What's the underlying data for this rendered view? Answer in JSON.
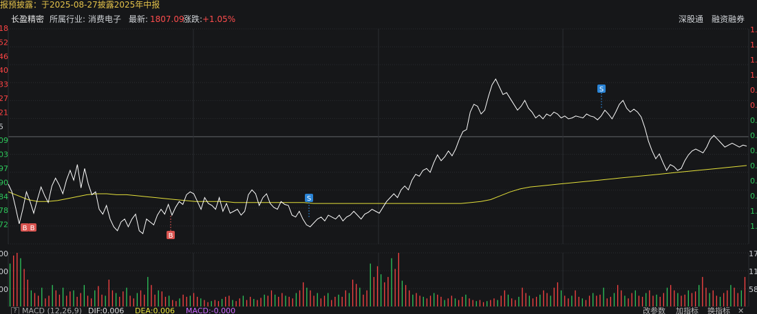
{
  "notice": "报预披露：于2025-08-27披露2025年中报",
  "stock": {
    "name": "长盈精密",
    "industry_label": "所属行业:",
    "industry": "消费电子",
    "latest_label": "最新:",
    "latest": "1807.09",
    "change_label": "涨跌:",
    "change": "+1.05%"
  },
  "toolbar": {
    "shenzhen_connect": "深股通",
    "margin_trading": "融资融券"
  },
  "price_axis": {
    "left_labels": [
      "18",
      "52",
      "46",
      "40",
      "33",
      "27",
      "21",
      "5",
      "09",
      "03",
      "97",
      "90",
      "84",
      "78",
      "72"
    ],
    "right_labels": [
      "1.",
      "1.",
      "1.",
      "1.",
      "0.",
      "0.",
      "0.",
      "0.",
      "0.",
      "0.",
      "0.",
      "0.",
      "1.",
      "1."
    ]
  },
  "volume_axis": {
    "left_labels": [
      "00",
      "00",
      "00"
    ],
    "right_labels": [
      "17",
      "11",
      "58"
    ]
  },
  "signals": {
    "buy": "B",
    "sell": "S"
  },
  "indicator_bar": {
    "help": "?",
    "macd_title": "MACD (12,26,9)",
    "dif": "DIF:0.006",
    "dea": "DEA:0.006",
    "macd": "MACD:-0.000",
    "change_param": "改参数",
    "add_indicator": "加指标",
    "switch_indicator": "换指标"
  },
  "colors": {
    "price_line": "#ffffff",
    "avg_line": "#e6e23a",
    "up": "#ff4444",
    "down": "#2ec95c",
    "grid": "#2b2d31",
    "buy_badge": "#d9534f",
    "sell_badge": "#2a84d6"
  },
  "chart_data": {
    "type": "line",
    "price_series": [
      0.66,
      0.58,
      0.42,
      0.25,
      0.4,
      0.58,
      0.48,
      0.36,
      0.5,
      0.63,
      0.54,
      0.47,
      0.64,
      0.72,
      0.65,
      0.56,
      0.7,
      0.8,
      0.7,
      0.86,
      0.62,
      0.82,
      0.66,
      0.55,
      0.58,
      0.4,
      0.35,
      0.44,
      0.3,
      0.22,
      0.18,
      0.27,
      0.3,
      0.22,
      0.3,
      0.35,
      0.18,
      0.15,
      0.3,
      0.27,
      0.24,
      0.34,
      0.4,
      0.35,
      0.45,
      0.34,
      0.42,
      0.48,
      0.45,
      0.55,
      0.58,
      0.56,
      0.48,
      0.4,
      0.52,
      0.46,
      0.44,
      0.4,
      0.52,
      0.38,
      0.46,
      0.36,
      0.38,
      0.4,
      0.34,
      0.38,
      0.55,
      0.6,
      0.56,
      0.44,
      0.52,
      0.56,
      0.46,
      0.42,
      0.4,
      0.48,
      0.45,
      0.44,
      0.34,
      0.32,
      0.38,
      0.3,
      0.24,
      0.22,
      0.26,
      0.3,
      0.32,
      0.28,
      0.34,
      0.32,
      0.3,
      0.34,
      0.28,
      0.32,
      0.34,
      0.38,
      0.34,
      0.3,
      0.35,
      0.37,
      0.4,
      0.38,
      0.36,
      0.42,
      0.48,
      0.52,
      0.56,
      0.52,
      0.6,
      0.64,
      0.6,
      0.7,
      0.76,
      0.74,
      0.8,
      0.82,
      0.78,
      0.88,
      0.96,
      0.9,
      0.94,
      1.0,
      0.95,
      1.02,
      1.12,
      1.2,
      1.22,
      1.4,
      1.48,
      1.46,
      1.38,
      1.42,
      1.56,
      1.68,
      1.74,
      1.66,
      1.58,
      1.6,
      1.54,
      1.48,
      1.42,
      1.46,
      1.52,
      1.44,
      1.4,
      1.34,
      1.37,
      1.33,
      1.38,
      1.36,
      1.4,
      1.38,
      1.34,
      1.36,
      1.33,
      1.34,
      1.36,
      1.35,
      1.34,
      1.38,
      1.36,
      1.35,
      1.32,
      1.36,
      1.42,
      1.38,
      1.33,
      1.4,
      1.48,
      1.52,
      1.44,
      1.4,
      1.43,
      1.4,
      1.35,
      1.24,
      1.1,
      1.0,
      0.92,
      0.97,
      0.88,
      0.8,
      0.86,
      0.84,
      0.8,
      0.82,
      0.9,
      0.96,
      1.0,
      1.02,
      1.0,
      0.98,
      1.04,
      1.12,
      1.16,
      1.12,
      1.08,
      1.04,
      1.06,
      1.08,
      1.06,
      1.04,
      1.06,
      1.05
    ],
    "avg_series": [
      0.58,
      0.54,
      0.5,
      0.48,
      0.48,
      0.49,
      0.51,
      0.53,
      0.55,
      0.56,
      0.56,
      0.55,
      0.55,
      0.54,
      0.53,
      0.52,
      0.51,
      0.5,
      0.49,
      0.48,
      0.48,
      0.48,
      0.48,
      0.47,
      0.47,
      0.47,
      0.47,
      0.47,
      0.47,
      0.47,
      0.47,
      0.46,
      0.46,
      0.46,
      0.46,
      0.46,
      0.46,
      0.46,
      0.46,
      0.46,
      0.46,
      0.46,
      0.46,
      0.46,
      0.46,
      0.46,
      0.46,
      0.47,
      0.48,
      0.5,
      0.54,
      0.58,
      0.61,
      0.63,
      0.64,
      0.65,
      0.66,
      0.67,
      0.68,
      0.69,
      0.7,
      0.71,
      0.72,
      0.73,
      0.74,
      0.75,
      0.76,
      0.77,
      0.78,
      0.79,
      0.8,
      0.81,
      0.82,
      0.83,
      0.84,
      0.85
    ],
    "volume_series": [
      0.8,
      0.95,
      1.0,
      0.9,
      0.7,
      0.5,
      0.3,
      0.25,
      0.2,
      0.35,
      0.15,
      0.2,
      0.4,
      0.3,
      0.22,
      0.35,
      0.2,
      0.28,
      0.3,
      0.18,
      0.25,
      0.4,
      0.2,
      0.15,
      0.3,
      0.38,
      0.22,
      0.2,
      0.5,
      0.3,
      0.25,
      0.18,
      0.28,
      0.35,
      0.2,
      0.15,
      0.25,
      0.3,
      0.22,
      0.55,
      0.4,
      0.22,
      0.3,
      0.28,
      0.18,
      0.2,
      0.12,
      0.1,
      0.15,
      0.22,
      0.18,
      0.2,
      0.25,
      0.18,
      0.15,
      0.12,
      0.08,
      0.1,
      0.12,
      0.1,
      0.14,
      0.18,
      0.2,
      0.12,
      0.1,
      0.15,
      0.2,
      0.12,
      0.18,
      0.14,
      0.12,
      0.16,
      0.22,
      0.2,
      0.3,
      0.22,
      0.18,
      0.25,
      0.2,
      0.18,
      0.15,
      0.25,
      0.3,
      0.45,
      0.35,
      0.3,
      0.2,
      0.25,
      0.15,
      0.2,
      0.25,
      0.12,
      0.18,
      0.22,
      0.18,
      0.3,
      0.25,
      0.5,
      0.42,
      0.35,
      0.22,
      0.3,
      0.8,
      0.55,
      0.75,
      0.6,
      0.45,
      0.55,
      0.9,
      0.7,
      1.0,
      0.48,
      0.4,
      0.3,
      0.22,
      0.25,
      0.2,
      0.18,
      0.15,
      0.2,
      0.25,
      0.22,
      0.18,
      0.12,
      0.15,
      0.2,
      0.15,
      0.12,
      0.18,
      0.22,
      0.15,
      0.12,
      0.1,
      0.12,
      0.08,
      0.1,
      0.12,
      0.15,
      0.12,
      0.2,
      0.3,
      0.22,
      0.15,
      0.12,
      0.18,
      0.35,
      0.25,
      0.2,
      0.15,
      0.18,
      0.22,
      0.3,
      0.25,
      0.2,
      0.35,
      0.45,
      0.3,
      0.2,
      0.15,
      0.2,
      0.3,
      0.18,
      0.15,
      0.12,
      0.2,
      0.25,
      0.2,
      0.22,
      0.35,
      0.15,
      0.18,
      0.25,
      0.4,
      0.3,
      0.2,
      0.15,
      0.25,
      0.3,
      0.2,
      0.18,
      0.25,
      0.3,
      0.2,
      0.22,
      0.18,
      0.25,
      0.35,
      0.4,
      0.3,
      0.25,
      0.2,
      0.22,
      0.3,
      0.25,
      0.28,
      0.4,
      0.55,
      0.35,
      0.25,
      0.3,
      0.2,
      0.18,
      0.25,
      0.3,
      0.4,
      0.35,
      0.25,
      0.3,
      0.55
    ]
  }
}
